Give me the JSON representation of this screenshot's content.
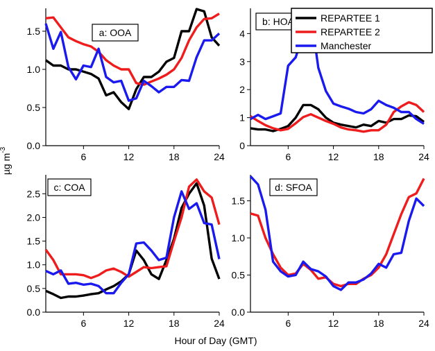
{
  "figure": {
    "xlabel": "Hour of Day (GMT)",
    "ylabel_main": "µg m",
    "ylabel_sup": "-3"
  },
  "legend": [
    {
      "name": "REPARTEE 1",
      "color": "#000000"
    },
    {
      "name": "REPARTEE 2",
      "color": "#ee1c1c"
    },
    {
      "name": "Manchester",
      "color": "#1a1aee"
    }
  ],
  "chart_data": [
    {
      "type": "line",
      "panel_label": "a: OOA",
      "xlim": [
        1,
        24
      ],
      "ylim": [
        0,
        1.8
      ],
      "xticks": [
        6,
        12,
        18,
        24
      ],
      "xtick_labels": [
        "6",
        "12",
        "18",
        "24"
      ],
      "yticks": [
        0,
        0.5,
        1.0,
        1.5
      ],
      "ytick_labels": [
        "0.0",
        "0.5",
        "1.0",
        "1.5"
      ],
      "x": [
        1,
        2,
        3,
        4,
        5,
        6,
        7,
        8,
        9,
        10,
        11,
        12,
        13,
        14,
        15,
        16,
        17,
        18,
        19,
        20,
        21,
        22,
        23,
        24
      ],
      "series": [
        {
          "name": "REPARTEE 1",
          "values": [
            1.12,
            1.05,
            1.05,
            1.0,
            1.0,
            0.97,
            0.94,
            0.88,
            0.66,
            0.7,
            0.57,
            0.48,
            0.74,
            0.9,
            0.9,
            0.97,
            1.1,
            1.15,
            1.5,
            1.5,
            1.79,
            1.76,
            1.42,
            1.31
          ]
        },
        {
          "name": "REPARTEE 2",
          "values": [
            1.67,
            1.68,
            1.55,
            1.42,
            1.37,
            1.33,
            1.3,
            1.23,
            1.12,
            1.05,
            1.0,
            1.0,
            0.82,
            0.8,
            0.84,
            0.88,
            0.93,
            1.0,
            1.15,
            1.38,
            1.55,
            1.66,
            1.67,
            1.73
          ]
        },
        {
          "name": "Manchester",
          "values": [
            1.6,
            1.27,
            1.49,
            1.03,
            0.87,
            1.05,
            1.03,
            1.27,
            0.9,
            0.83,
            0.85,
            0.59,
            0.62,
            0.85,
            0.78,
            0.7,
            0.77,
            0.77,
            0.86,
            0.85,
            1.16,
            1.38,
            1.38,
            1.47
          ]
        }
      ]
    },
    {
      "type": "line",
      "panel_label": "b: HOA",
      "xlim": [
        1,
        24
      ],
      "ylim": [
        0,
        4.9
      ],
      "xticks": [
        6,
        12,
        18,
        24
      ],
      "xtick_labels": [
        "6",
        "12",
        "18",
        "24"
      ],
      "yticks": [
        0,
        1,
        2,
        3,
        4
      ],
      "ytick_labels": [
        "0",
        "1",
        "2",
        "3",
        "4"
      ],
      "x": [
        1,
        2,
        3,
        4,
        5,
        6,
        7,
        8,
        9,
        10,
        11,
        12,
        13,
        14,
        15,
        16,
        17,
        18,
        19,
        20,
        21,
        22,
        23,
        24
      ],
      "series": [
        {
          "name": "REPARTEE 1",
          "values": [
            0.62,
            0.58,
            0.58,
            0.52,
            0.6,
            0.7,
            1.0,
            1.45,
            1.45,
            1.3,
            1.0,
            0.82,
            0.75,
            0.7,
            0.65,
            0.75,
            0.7,
            0.88,
            0.82,
            0.95,
            0.95,
            1.08,
            1.05,
            0.85
          ]
        },
        {
          "name": "REPARTEE 2",
          "values": [
            1.05,
            0.88,
            0.73,
            0.62,
            0.55,
            0.6,
            0.8,
            1.02,
            1.12,
            1.0,
            0.88,
            0.78,
            0.65,
            0.58,
            0.55,
            0.5,
            0.55,
            0.55,
            0.75,
            1.2,
            1.4,
            1.55,
            1.45,
            1.2
          ]
        },
        {
          "name": "Manchester",
          "values": [
            0.95,
            1.1,
            0.95,
            1.05,
            1.15,
            2.85,
            3.15,
            4.0,
            4.72,
            2.78,
            1.95,
            1.5,
            1.4,
            1.32,
            1.2,
            1.15,
            1.3,
            1.6,
            1.45,
            1.35,
            1.2,
            1.2,
            0.95,
            0.78
          ]
        }
      ]
    },
    {
      "type": "line",
      "panel_label": "c: COA",
      "xlim": [
        1,
        24
      ],
      "ylim": [
        0,
        2.9
      ],
      "xticks": [
        6,
        12,
        18,
        24
      ],
      "xtick_labels": [
        "6",
        "12",
        "18",
        "24"
      ],
      "yticks": [
        0,
        0.5,
        1.0,
        1.5,
        2.0,
        2.5
      ],
      "ytick_labels": [
        "0.0",
        "0.5",
        "1.0",
        "1.5",
        "2.0",
        "2.5"
      ],
      "x": [
        1,
        2,
        3,
        4,
        5,
        6,
        7,
        8,
        9,
        10,
        11,
        12,
        13,
        14,
        15,
        16,
        17,
        18,
        19,
        20,
        21,
        22,
        23,
        24
      ],
      "series": [
        {
          "name": "REPARTEE 1",
          "values": [
            0.45,
            0.38,
            0.3,
            0.33,
            0.33,
            0.35,
            0.38,
            0.4,
            0.48,
            0.55,
            0.65,
            0.8,
            1.3,
            1.1,
            0.8,
            0.7,
            1.1,
            1.55,
            2.2,
            2.5,
            2.72,
            2.25,
            1.13,
            0.7
          ]
        },
        {
          "name": "REPARTEE 2",
          "values": [
            1.32,
            1.1,
            0.8,
            0.8,
            0.8,
            0.78,
            0.72,
            0.78,
            0.88,
            0.92,
            0.85,
            0.75,
            0.85,
            0.95,
            0.93,
            0.95,
            0.97,
            1.5,
            2.0,
            2.65,
            2.8,
            2.55,
            2.42,
            1.85
          ]
        },
        {
          "name": "Manchester",
          "values": [
            0.87,
            0.8,
            0.88,
            0.6,
            0.62,
            0.58,
            0.6,
            0.55,
            0.4,
            0.4,
            0.62,
            0.8,
            1.45,
            1.47,
            1.3,
            1.1,
            1.15,
            2.0,
            2.55,
            2.18,
            2.3,
            1.88,
            1.85,
            1.12
          ]
        }
      ]
    },
    {
      "type": "line",
      "panel_label": "d: SFOA",
      "xlim": [
        1,
        24
      ],
      "ylim": [
        0,
        1.85
      ],
      "xticks": [
        6,
        12,
        18,
        24
      ],
      "xtick_labels": [
        "6",
        "12",
        "18",
        "24"
      ],
      "yticks": [
        0,
        0.5,
        1.0,
        1.5
      ],
      "ytick_labels": [
        "0.0",
        "0.5",
        "1.0",
        "1.5"
      ],
      "x": [
        1,
        2,
        3,
        4,
        5,
        6,
        7,
        8,
        9,
        10,
        11,
        12,
        13,
        14,
        15,
        16,
        17,
        18,
        19,
        20,
        21,
        22,
        23,
        24
      ],
      "series": [
        {
          "name": "REPARTEE 2",
          "values": [
            1.33,
            1.3,
            1.0,
            0.78,
            0.6,
            0.5,
            0.52,
            0.65,
            0.57,
            0.45,
            0.47,
            0.38,
            0.35,
            0.38,
            0.38,
            0.45,
            0.5,
            0.6,
            0.78,
            1.05,
            1.32,
            1.55,
            1.6,
            1.8
          ]
        },
        {
          "name": "Manchester",
          "values": [
            1.83,
            1.72,
            1.38,
            0.68,
            0.55,
            0.48,
            0.5,
            0.68,
            0.58,
            0.55,
            0.48,
            0.35,
            0.3,
            0.4,
            0.4,
            0.44,
            0.52,
            0.65,
            0.6,
            0.78,
            0.8,
            1.23,
            1.53,
            1.43
          ]
        }
      ]
    }
  ]
}
